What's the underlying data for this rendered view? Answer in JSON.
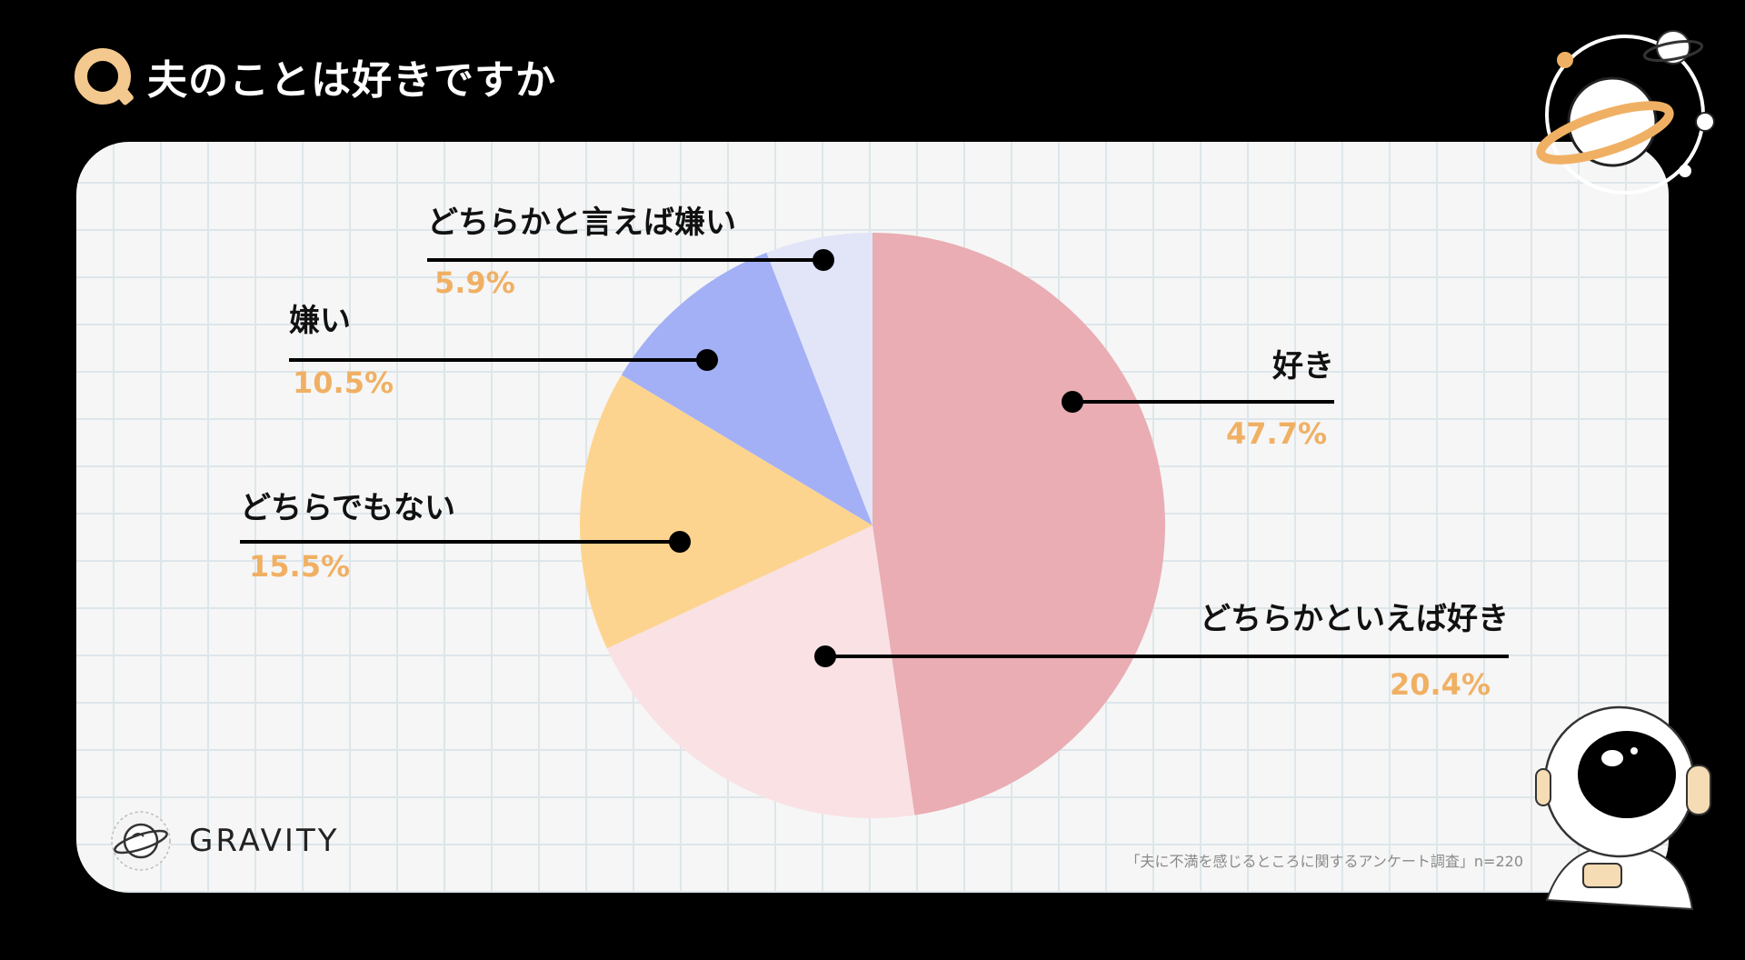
{
  "header": {
    "q_mark": "Q",
    "title": "夫のことは好きですか"
  },
  "brand": {
    "name": "GRAVITY"
  },
  "source": {
    "text": "「夫に不満を感じるところに関するアンケート調査」n=220"
  },
  "colors": {
    "percent_text": "#f0b064",
    "line": "#000000",
    "label_text": "#111111"
  },
  "chart_data": {
    "type": "pie",
    "title": "夫のことは好きですか",
    "start": "12 o'clock, clockwise",
    "slices": [
      {
        "label": "好き",
        "value": 47.7,
        "value_label": "47.7%",
        "color": "#e9adb3"
      },
      {
        "label": "どちらかといえば好き",
        "value": 20.4,
        "value_label": "20.4%",
        "color": "#f9e1e4"
      },
      {
        "label": "どちらでもない",
        "value": 15.5,
        "value_label": "15.5%",
        "color": "#fdd48f"
      },
      {
        "label": "嫌い",
        "value": 10.5,
        "value_label": "10.5%",
        "color": "#a3b0f5"
      },
      {
        "label": "どちらかと言えば嫌い",
        "value": 5.9,
        "value_label": "5.9%",
        "color": "#e2e5f8"
      }
    ]
  }
}
